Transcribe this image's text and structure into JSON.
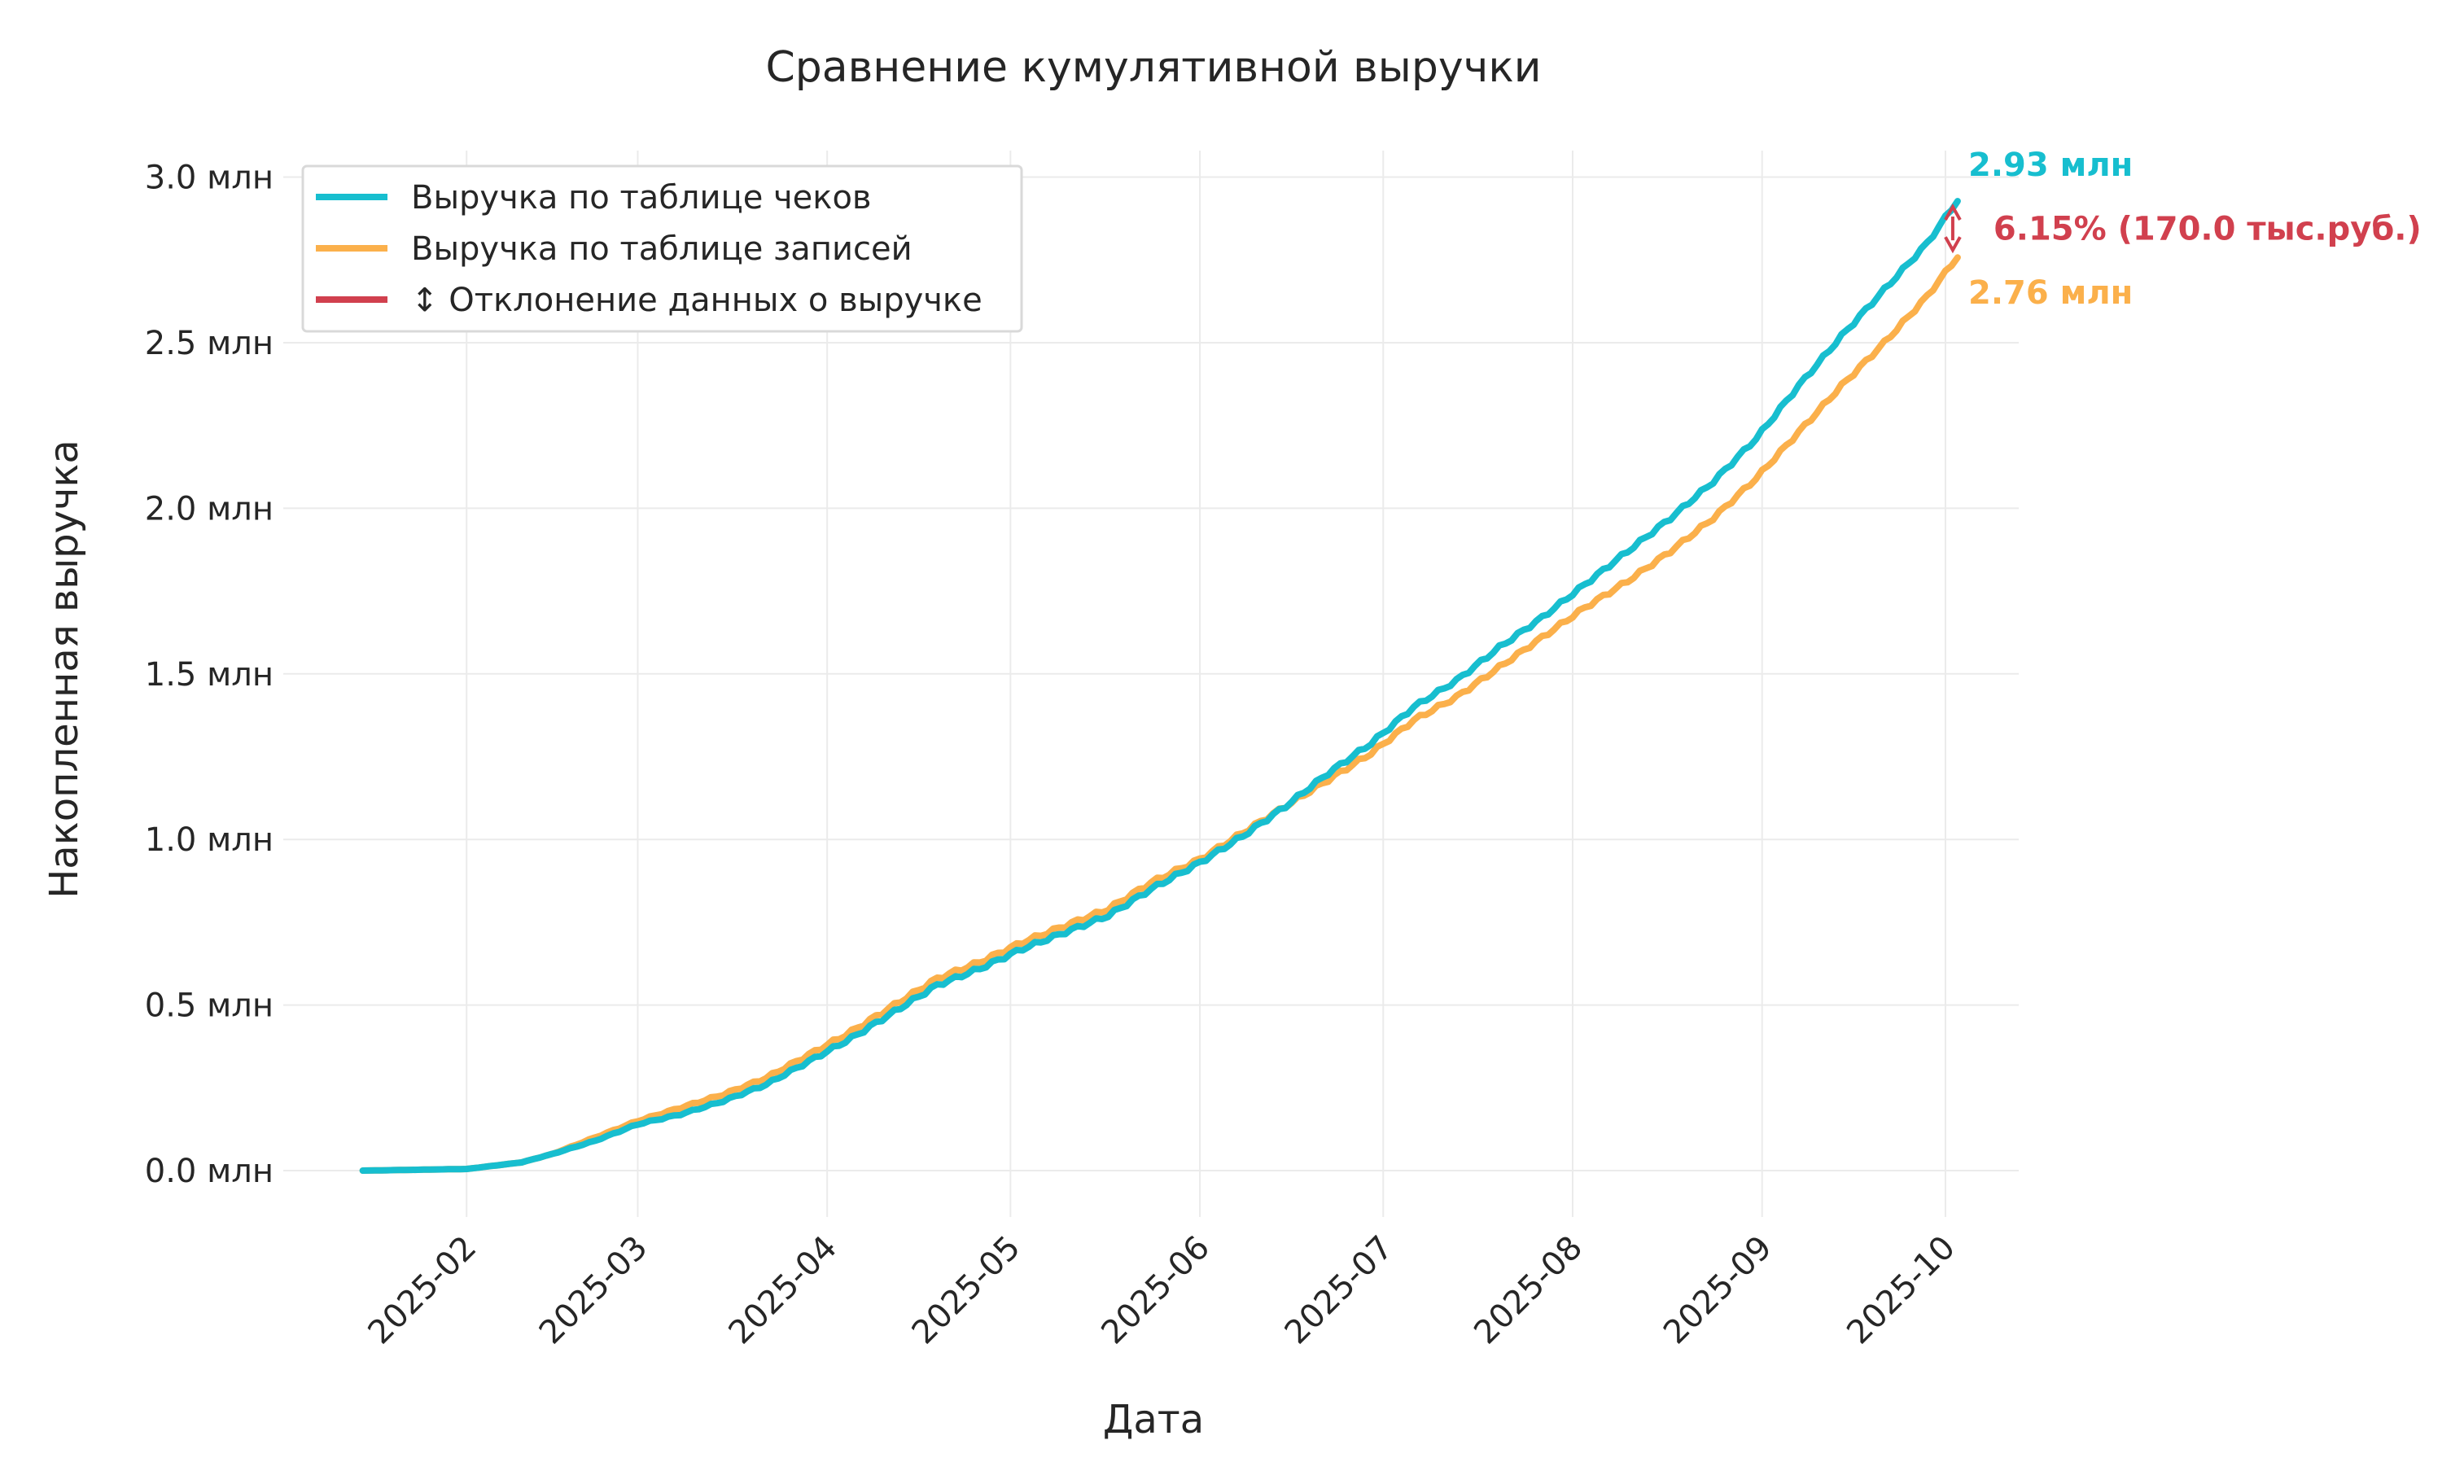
{
  "chart_data": {
    "type": "line",
    "title": "Сравнение кумулятивной выручки",
    "xlabel": "Дата",
    "ylabel": "Накопленная выручка",
    "x_ticks": [
      "2025-02",
      "2025-03",
      "2025-04",
      "2025-05",
      "2025-06",
      "2025-07",
      "2025-08",
      "2025-09",
      "2025-10"
    ],
    "y_ticks": [
      {
        "value": 0.0,
        "label": "0.0 млн"
      },
      {
        "value": 0.5,
        "label": "0.5 млн"
      },
      {
        "value": 1.0,
        "label": "1.0 млн"
      },
      {
        "value": 1.5,
        "label": "1.5 млн"
      },
      {
        "value": 2.0,
        "label": "2.0 млн"
      },
      {
        "value": 2.5,
        "label": "2.5 млн"
      },
      {
        "value": 3.0,
        "label": "3.0 млн"
      }
    ],
    "xlim": [
      "2025-01-02",
      "2025-10-13"
    ],
    "ylim": [
      -0.14,
      3.08
    ],
    "grid": true,
    "legend_position": "top-left",
    "series": [
      {
        "name": "Выручка по таблице чеков",
        "color": "#17BECF",
        "points": [
          [
            "2025-01-15",
            0.0
          ],
          [
            "2025-02-01",
            0.005
          ],
          [
            "2025-02-10",
            0.025
          ],
          [
            "2025-02-15",
            0.05
          ],
          [
            "2025-02-22",
            0.09
          ],
          [
            "2025-03-01",
            0.14
          ],
          [
            "2025-03-08",
            0.17
          ],
          [
            "2025-03-15",
            0.21
          ],
          [
            "2025-03-22",
            0.26
          ],
          [
            "2025-03-29",
            0.33
          ],
          [
            "2025-04-05",
            0.4
          ],
          [
            "2025-04-12",
            0.48
          ],
          [
            "2025-04-19",
            0.56
          ],
          [
            "2025-04-26",
            0.61
          ],
          [
            "2025-05-03",
            0.67
          ],
          [
            "2025-05-10",
            0.72
          ],
          [
            "2025-05-17",
            0.77
          ],
          [
            "2025-05-24",
            0.85
          ],
          [
            "2025-06-01",
            0.93
          ],
          [
            "2025-06-08",
            1.01
          ],
          [
            "2025-06-15",
            1.1
          ],
          [
            "2025-06-22",
            1.2
          ],
          [
            "2025-06-29",
            1.29
          ],
          [
            "2025-07-06",
            1.4
          ],
          [
            "2025-07-13",
            1.48
          ],
          [
            "2025-07-20",
            1.58
          ],
          [
            "2025-07-27",
            1.67
          ],
          [
            "2025-08-03",
            1.77
          ],
          [
            "2025-08-10",
            1.87
          ],
          [
            "2025-08-17",
            1.97
          ],
          [
            "2025-08-24",
            2.08
          ],
          [
            "2025-08-31",
            2.21
          ],
          [
            "2025-09-07",
            2.37
          ],
          [
            "2025-09-14",
            2.52
          ],
          [
            "2025-09-21",
            2.66
          ],
          [
            "2025-09-28",
            2.8
          ],
          [
            "2025-10-03",
            2.93
          ]
        ]
      },
      {
        "name": "Выручка по таблице записей",
        "color": "#FBB04B",
        "points": [
          [
            "2025-01-15",
            0.0
          ],
          [
            "2025-02-01",
            0.005
          ],
          [
            "2025-02-10",
            0.025
          ],
          [
            "2025-02-15",
            0.05
          ],
          [
            "2025-02-22",
            0.1
          ],
          [
            "2025-03-01",
            0.15
          ],
          [
            "2025-03-08",
            0.19
          ],
          [
            "2025-03-15",
            0.23
          ],
          [
            "2025-03-22",
            0.28
          ],
          [
            "2025-03-29",
            0.35
          ],
          [
            "2025-04-05",
            0.42
          ],
          [
            "2025-04-12",
            0.5
          ],
          [
            "2025-04-19",
            0.58
          ],
          [
            "2025-04-26",
            0.63
          ],
          [
            "2025-05-03",
            0.69
          ],
          [
            "2025-05-10",
            0.74
          ],
          [
            "2025-05-17",
            0.79
          ],
          [
            "2025-05-24",
            0.87
          ],
          [
            "2025-06-01",
            0.94
          ],
          [
            "2025-06-08",
            1.02
          ],
          [
            "2025-06-15",
            1.1
          ],
          [
            "2025-06-22",
            1.18
          ],
          [
            "2025-06-29",
            1.26
          ],
          [
            "2025-07-06",
            1.36
          ],
          [
            "2025-07-13",
            1.43
          ],
          [
            "2025-07-20",
            1.52
          ],
          [
            "2025-07-27",
            1.61
          ],
          [
            "2025-08-03",
            1.7
          ],
          [
            "2025-08-10",
            1.78
          ],
          [
            "2025-08-17",
            1.87
          ],
          [
            "2025-08-24",
            1.97
          ],
          [
            "2025-08-31",
            2.09
          ],
          [
            "2025-09-07",
            2.23
          ],
          [
            "2025-09-14",
            2.37
          ],
          [
            "2025-09-21",
            2.5
          ],
          [
            "2025-09-28",
            2.64
          ],
          [
            "2025-10-03",
            2.76
          ]
        ]
      }
    ],
    "deviation": {
      "legend_label": "↕ Отклонение данных о выручке",
      "color": "#D1404E",
      "date": "2025-10-03",
      "from": 2.76,
      "to": 2.93,
      "label": "6.15% (170.0 тыс.руб.)"
    },
    "end_labels": [
      {
        "text": "2.93 млн",
        "value": 2.93,
        "color": "#17BECF"
      },
      {
        "text": "2.76 млн",
        "value": 2.76,
        "color": "#FBB04B"
      }
    ]
  }
}
